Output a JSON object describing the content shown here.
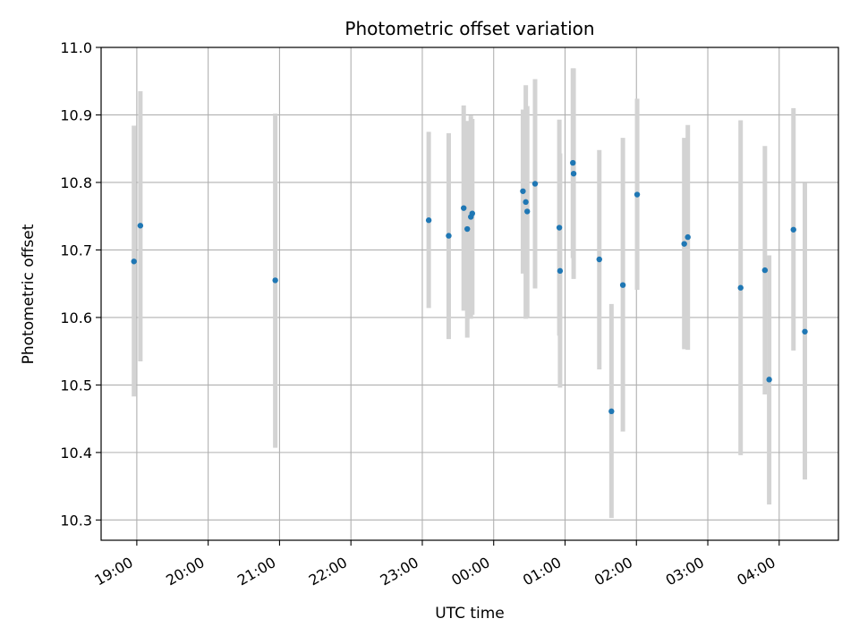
{
  "chart_data": {
    "type": "scatter",
    "title": "Photometric offset variation",
    "xlabel": "UTC time",
    "ylabel": "Photometric offset",
    "x_unit": "hours (UTC clock time; values 24+ are after midnight)",
    "xlim": [
      18.5,
      28.83
    ],
    "ylim": [
      10.27,
      11.0
    ],
    "x_ticks": [
      {
        "value": 19,
        "label": "19:00"
      },
      {
        "value": 20,
        "label": "20:00"
      },
      {
        "value": 21,
        "label": "21:00"
      },
      {
        "value": 22,
        "label": "22:00"
      },
      {
        "value": 23,
        "label": "23:00"
      },
      {
        "value": 24,
        "label": "00:00"
      },
      {
        "value": 25,
        "label": "01:00"
      },
      {
        "value": 26,
        "label": "02:00"
      },
      {
        "value": 27,
        "label": "03:00"
      },
      {
        "value": 28,
        "label": "04:00"
      }
    ],
    "y_ticks": [
      {
        "value": 10.3,
        "label": "10.3"
      },
      {
        "value": 10.4,
        "label": "10.4"
      },
      {
        "value": 10.5,
        "label": "10.5"
      },
      {
        "value": 10.6,
        "label": "10.6"
      },
      {
        "value": 10.7,
        "label": "10.7"
      },
      {
        "value": 10.8,
        "label": "10.8"
      },
      {
        "value": 10.9,
        "label": "10.9"
      },
      {
        "value": 11.0,
        "label": "11.0"
      }
    ],
    "grid": true,
    "colors": {
      "point": "#1f77b4",
      "errorbar": "#d3d3d3",
      "grid": "#b0b0b0"
    },
    "points": [
      {
        "x": 18.96,
        "y": 10.683,
        "low": 10.483,
        "high": 10.884
      },
      {
        "x": 19.05,
        "y": 10.736,
        "low": 10.535,
        "high": 10.935
      },
      {
        "x": 20.94,
        "y": 10.655,
        "low": 10.407,
        "high": 10.902
      },
      {
        "x": 23.09,
        "y": 10.744,
        "low": 10.614,
        "high": 10.875
      },
      {
        "x": 23.37,
        "y": 10.721,
        "low": 10.568,
        "high": 10.873
      },
      {
        "x": 23.58,
        "y": 10.762,
        "low": 10.61,
        "high": 10.914
      },
      {
        "x": 23.63,
        "y": 10.731,
        "low": 10.57,
        "high": 10.891
      },
      {
        "x": 23.68,
        "y": 10.749,
        "low": 10.598,
        "high": 10.899
      },
      {
        "x": 23.7,
        "y": 10.754,
        "low": 10.604,
        "high": 10.894
      },
      {
        "x": 24.41,
        "y": 10.787,
        "low": 10.665,
        "high": 10.908
      },
      {
        "x": 24.45,
        "y": 10.771,
        "low": 10.598,
        "high": 10.944
      },
      {
        "x": 24.47,
        "y": 10.757,
        "low": 10.6,
        "high": 10.913
      },
      {
        "x": 24.58,
        "y": 10.798,
        "low": 10.643,
        "high": 10.953
      },
      {
        "x": 24.92,
        "y": 10.733,
        "low": 10.573,
        "high": 10.893
      },
      {
        "x": 24.93,
        "y": 10.669,
        "low": 10.496,
        "high": 10.843
      },
      {
        "x": 25.11,
        "y": 10.829,
        "low": 10.688,
        "high": 10.969
      },
      {
        "x": 25.12,
        "y": 10.813,
        "low": 10.657,
        "high": 10.969
      },
      {
        "x": 25.48,
        "y": 10.686,
        "low": 10.523,
        "high": 10.848
      },
      {
        "x": 25.65,
        "y": 10.461,
        "low": 10.303,
        "high": 10.62
      },
      {
        "x": 25.81,
        "y": 10.648,
        "low": 10.431,
        "high": 10.866
      },
      {
        "x": 26.01,
        "y": 10.782,
        "low": 10.641,
        "high": 10.924
      },
      {
        "x": 26.67,
        "y": 10.709,
        "low": 10.553,
        "high": 10.866
      },
      {
        "x": 26.72,
        "y": 10.719,
        "low": 10.552,
        "high": 10.885
      },
      {
        "x": 27.46,
        "y": 10.644,
        "low": 10.396,
        "high": 10.892
      },
      {
        "x": 27.8,
        "y": 10.67,
        "low": 10.486,
        "high": 10.854
      },
      {
        "x": 27.86,
        "y": 10.508,
        "low": 10.323,
        "high": 10.692
      },
      {
        "x": 28.2,
        "y": 10.73,
        "low": 10.551,
        "high": 10.91
      },
      {
        "x": 28.36,
        "y": 10.579,
        "low": 10.36,
        "high": 10.799
      }
    ]
  }
}
